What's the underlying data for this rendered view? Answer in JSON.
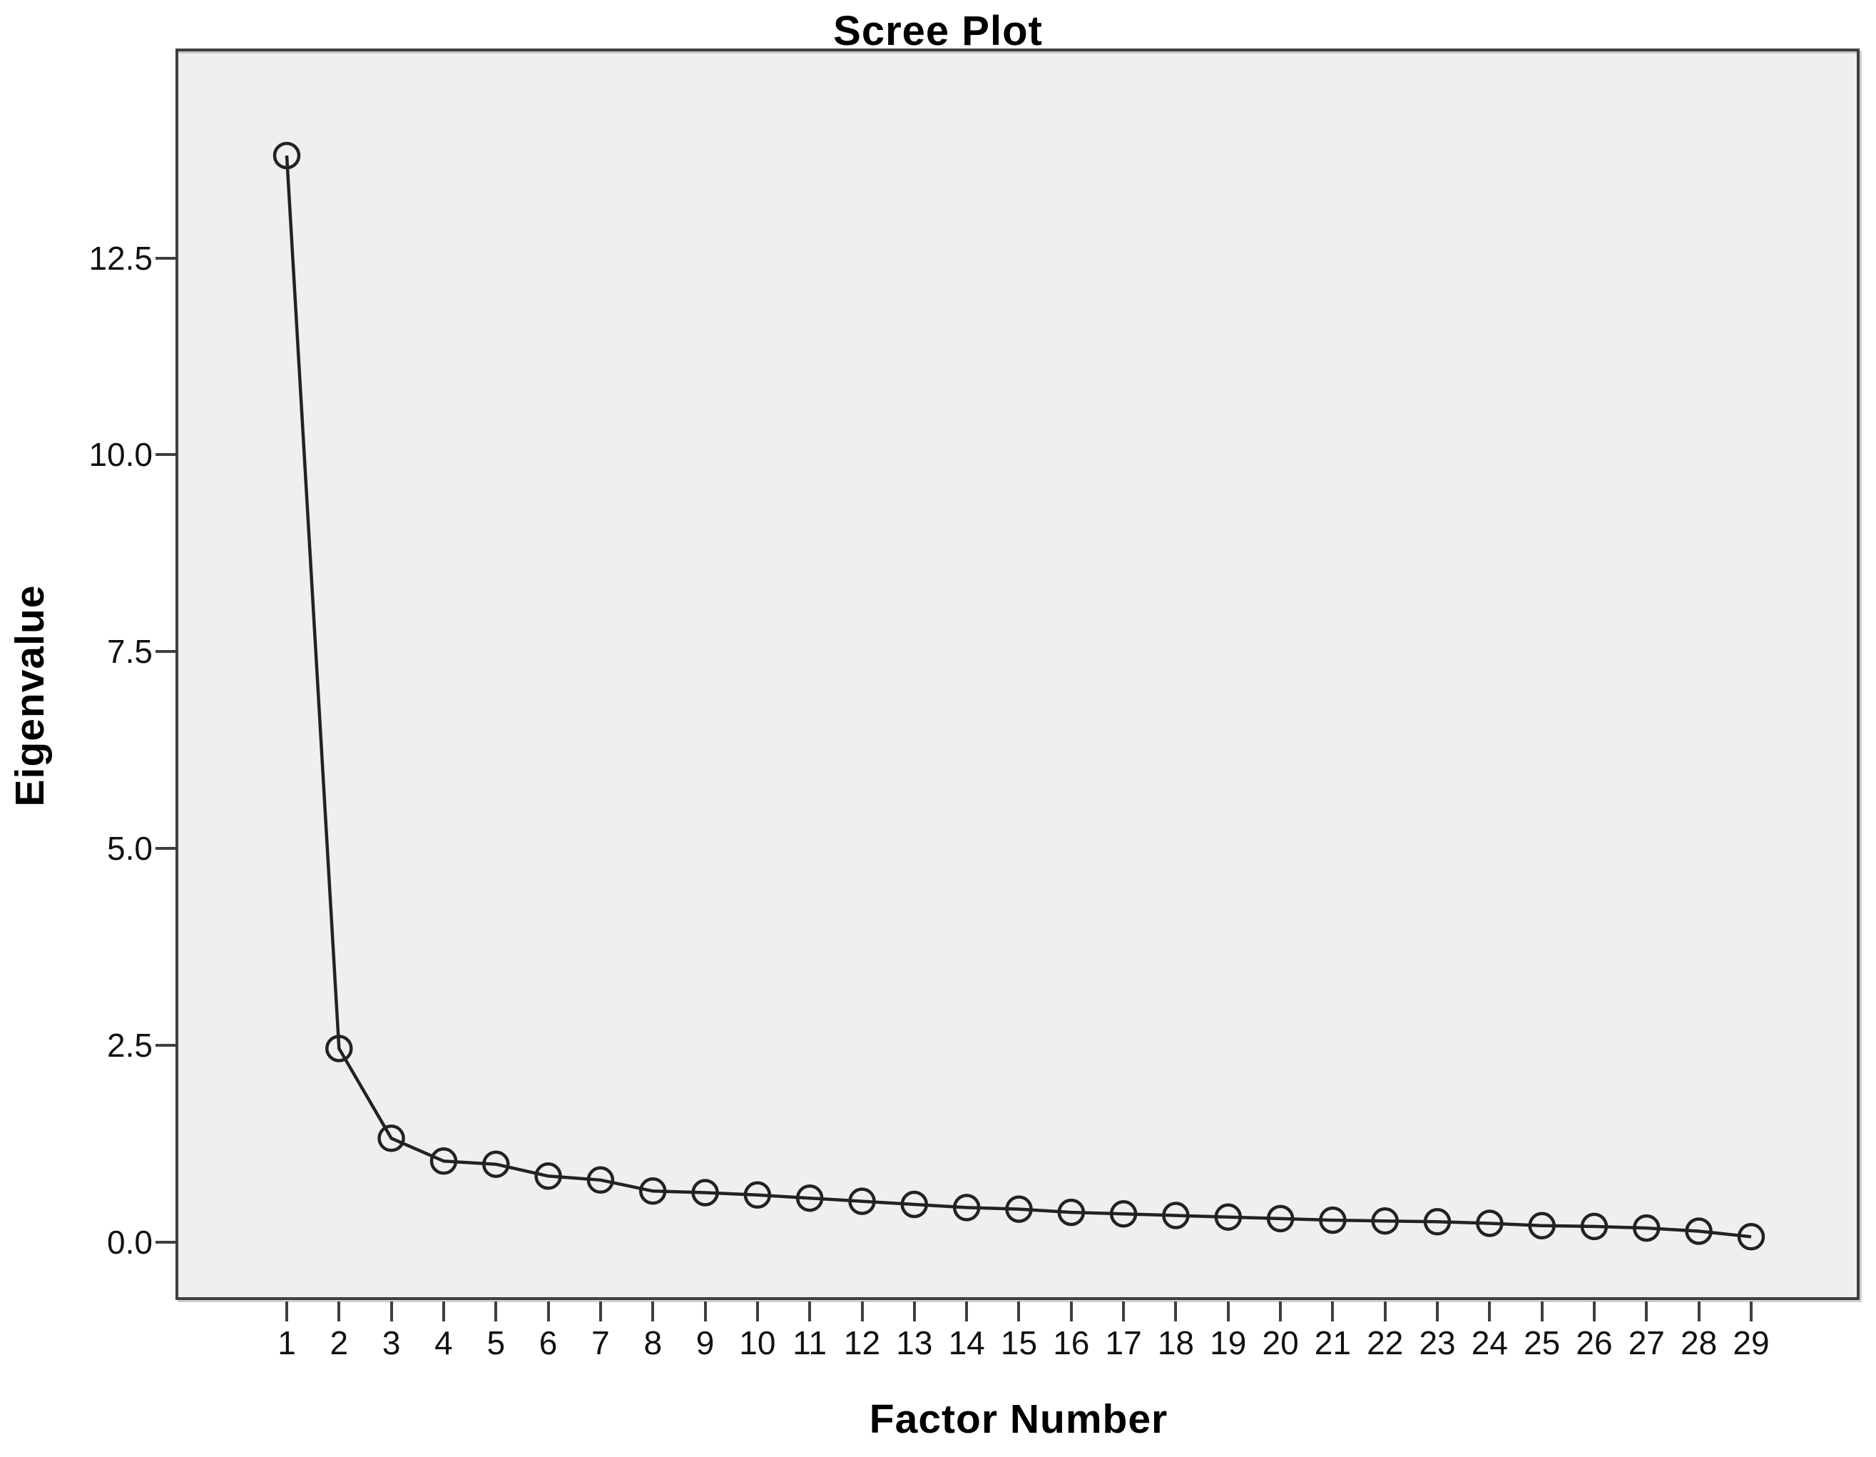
{
  "chart_data": {
    "type": "line",
    "title": "Scree Plot",
    "xlabel": "Factor Number",
    "ylabel": "Eigenvalue",
    "categories": [
      "1",
      "2",
      "3",
      "4",
      "5",
      "6",
      "7",
      "8",
      "9",
      "10",
      "11",
      "12",
      "13",
      "14",
      "15",
      "16",
      "17",
      "18",
      "19",
      "20",
      "21",
      "22",
      "23",
      "24",
      "25",
      "26",
      "27",
      "28",
      "29"
    ],
    "values": [
      13.8,
      2.46,
      1.32,
      1.03,
      0.99,
      0.84,
      0.79,
      0.65,
      0.63,
      0.6,
      0.56,
      0.52,
      0.48,
      0.44,
      0.42,
      0.38,
      0.36,
      0.34,
      0.32,
      0.3,
      0.28,
      0.27,
      0.26,
      0.24,
      0.21,
      0.2,
      0.18,
      0.14,
      0.07
    ],
    "yticks": [
      "0.0",
      "2.5",
      "5.0",
      "7.5",
      "10.0",
      "12.5"
    ],
    "ytick_values": [
      0,
      2.5,
      5,
      7.5,
      10,
      12.5
    ],
    "ylim": [
      -0.7,
      15.2
    ],
    "grid": false,
    "legend": "none",
    "marker": "open-circle",
    "line_color": "#222222",
    "marker_color": "#222222",
    "plot_bg": "#efefef",
    "frame_color": "#3f3f3f",
    "outer_bg": "#ffffff",
    "text_color": "#111111"
  }
}
